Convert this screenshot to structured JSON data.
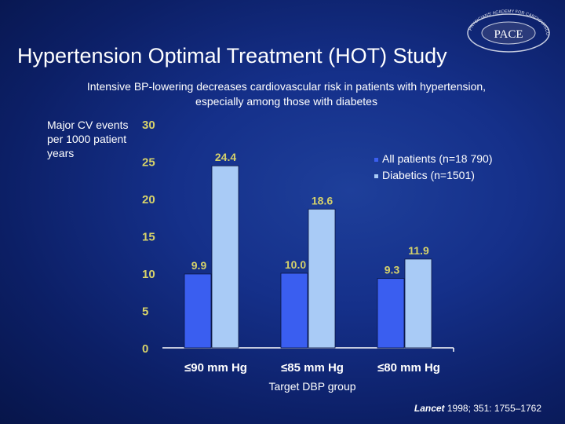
{
  "slide": {
    "title": "Hypertension Optimal Treatment (HOT) Study",
    "subtitle_line1": "Intensive BP-lowering decreases cardiovascular risk in patients with hypertension,",
    "subtitle_line2": "especially among those with diabetes",
    "citation_journal": "Lancet",
    "citation_ref": " 1998; 351: 1755–1762"
  },
  "logo": {
    "text": "PACE",
    "ring_text": "PHYSICIANS' ACADEMY FOR CARDIOVASCULAR EDUCATION"
  },
  "chart_data": {
    "type": "bar",
    "title": "",
    "ylabel": "Major CV events per 1000 patient years",
    "xlabel": "Target DBP group",
    "ylim": [
      0,
      30
    ],
    "yticks": [
      0,
      5,
      10,
      15,
      20,
      25,
      30
    ],
    "categories": [
      "≤90 mm Hg",
      "≤85 mm Hg",
      "≤80 mm Hg"
    ],
    "series": [
      {
        "name": "All patients (n=18 790)",
        "values": [
          9.9,
          10.0,
          9.3
        ],
        "color": "#3a5ef0",
        "label_color": "#d6d26a"
      },
      {
        "name": "Diabetics (n=1501)",
        "values": [
          24.4,
          18.6,
          11.9
        ],
        "color": "#a9cbf6",
        "label_color": "#d6d26a"
      }
    ],
    "data_labels": [
      [
        "9.9",
        "10.0",
        "9.3"
      ],
      [
        "24.4",
        "18.6",
        "11.9"
      ]
    ],
    "tick_color": "#d6d26a",
    "legend_position": "top-right"
  }
}
